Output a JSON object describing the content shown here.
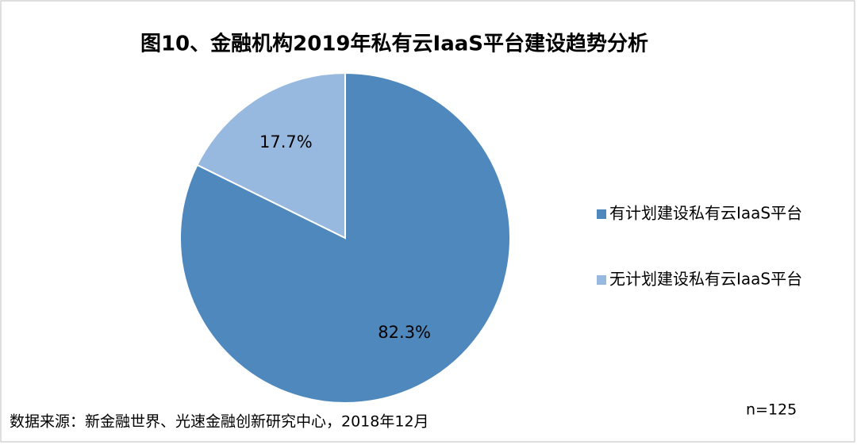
{
  "chart_data": {
    "type": "pie",
    "title": "图10、金融机构2019年私有云IaaS平台建设趋势分析",
    "categories": [
      "有计划建设私有云IaaS平台",
      "无计划建设私有云IaaS平台"
    ],
    "values": [
      82.3,
      17.7
    ],
    "value_labels": [
      "82.3%",
      "17.7%"
    ],
    "colors": [
      "#4f88bd",
      "#98b9df"
    ],
    "legend": "right",
    "note": "n=125",
    "source": "数据来源：新金融世界、光速金融创新研究中心，2018年12月"
  }
}
